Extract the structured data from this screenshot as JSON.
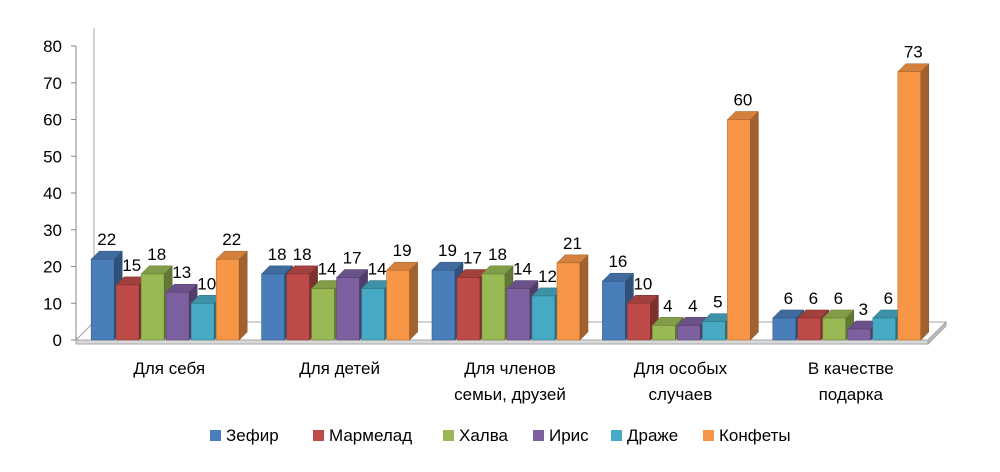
{
  "chart_data": {
    "type": "bar",
    "title": "",
    "xlabel": "",
    "ylabel": "",
    "ylim": [
      0,
      80
    ],
    "yticks": [
      0,
      10,
      20,
      30,
      40,
      50,
      60,
      70,
      80
    ],
    "grid": false,
    "legend_position": "bottom",
    "categories": [
      [
        "Для себя"
      ],
      [
        "Для детей"
      ],
      [
        "Для членов",
        "семьи, друзей"
      ],
      [
        "Для особых",
        "случаев"
      ],
      [
        "В качестве",
        "подарка"
      ]
    ],
    "series": [
      {
        "name": "Зефир",
        "color": "#4a7ebb",
        "values": [
          22,
          18,
          19,
          16,
          6
        ]
      },
      {
        "name": "Мармелад",
        "color": "#be4b48",
        "values": [
          15,
          18,
          17,
          10,
          6
        ]
      },
      {
        "name": "Халва",
        "color": "#98b954",
        "values": [
          18,
          14,
          18,
          4,
          6
        ]
      },
      {
        "name": "Ирис",
        "color": "#7d60a0",
        "values": [
          13,
          17,
          14,
          4,
          3
        ]
      },
      {
        "name": "Драже",
        "color": "#46aac5",
        "values": [
          10,
          14,
          12,
          5,
          6
        ]
      },
      {
        "name": "Конфеты",
        "color": "#f79646",
        "values": [
          22,
          19,
          21,
          60,
          73
        ]
      }
    ]
  }
}
